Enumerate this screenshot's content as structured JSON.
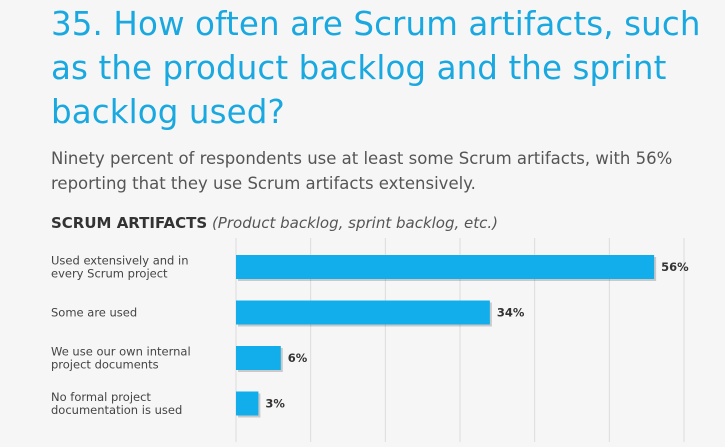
{
  "title": "35. How often are Scrum artifacts, such as the product backlog and the sprint backlog used?",
  "description": "Ninety percent of respondents use at least some Scrum artifacts, with 56% reporting that they use Scrum artifacts extensively.",
  "chart_data": {
    "type": "bar",
    "orientation": "horizontal",
    "title": "SCRUM ARTIFACTS",
    "subtitle": "(Product backlog, sprint backlog, etc.)",
    "categories": [
      [
        "Used extensively and in",
        "every Scrum project"
      ],
      [
        "Some are used"
      ],
      [
        "We use our own internal",
        "project documents"
      ],
      [
        "No formal project",
        "documentation is used"
      ]
    ],
    "values": [
      56,
      34,
      6,
      3
    ],
    "data_labels": [
      "56%",
      "34%",
      "6%",
      "3%"
    ],
    "xlim": [
      0,
      60
    ],
    "grid": true,
    "bar_color": "#12aeeb"
  }
}
